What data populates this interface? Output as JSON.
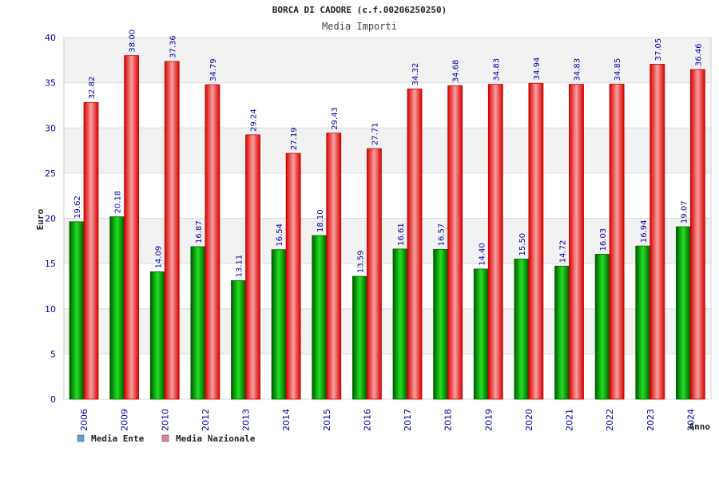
{
  "chart_data": {
    "type": "bar",
    "title": "BORCA DI CADORE (c.f.00206250250)",
    "subtitle": "Media Importi",
    "xlabel": "Anno",
    "ylabel": "Euro",
    "ylim": [
      0,
      40
    ],
    "yticks": [
      0,
      5,
      10,
      15,
      20,
      25,
      30,
      35,
      40
    ],
    "grid": true,
    "legend_position": "bottom-left",
    "categories": [
      "2006",
      "2009",
      "2010",
      "2012",
      "2013",
      "2014",
      "2015",
      "2016",
      "2017",
      "2018",
      "2019",
      "2020",
      "2021",
      "2022",
      "2023",
      "2024"
    ],
    "series": [
      {
        "name": "Media Ente",
        "color": "#00aa00",
        "legend_color": "#5aa0e6",
        "values": [
          19.62,
          20.18,
          14.09,
          16.87,
          13.11,
          16.54,
          18.1,
          13.59,
          16.61,
          16.57,
          14.4,
          15.5,
          14.72,
          16.03,
          16.94,
          19.07
        ],
        "labels": [
          "19.62",
          "20.18",
          "14.09",
          "16.87",
          "13.11",
          "16.54",
          "18.10",
          "13.59",
          "16.61",
          "16.57",
          "14.40",
          "15.50",
          "14.72",
          "16.03",
          "16.94",
          "19.07"
        ]
      },
      {
        "name": "Media Nazionale",
        "color": "#ee1111",
        "legend_color": "#e080a8",
        "values": [
          32.82,
          38.0,
          37.36,
          34.79,
          29.24,
          27.19,
          29.43,
          27.71,
          34.32,
          34.68,
          34.83,
          34.94,
          34.83,
          34.85,
          37.05,
          36.46
        ],
        "labels": [
          "32.82",
          "38.00",
          "37.36",
          "34.79",
          "29.24",
          "27.19",
          "29.43",
          "27.71",
          "34.32",
          "34.68",
          "34.83",
          "34.94",
          "34.83",
          "34.85",
          "37.05",
          "36.46"
        ]
      }
    ]
  }
}
